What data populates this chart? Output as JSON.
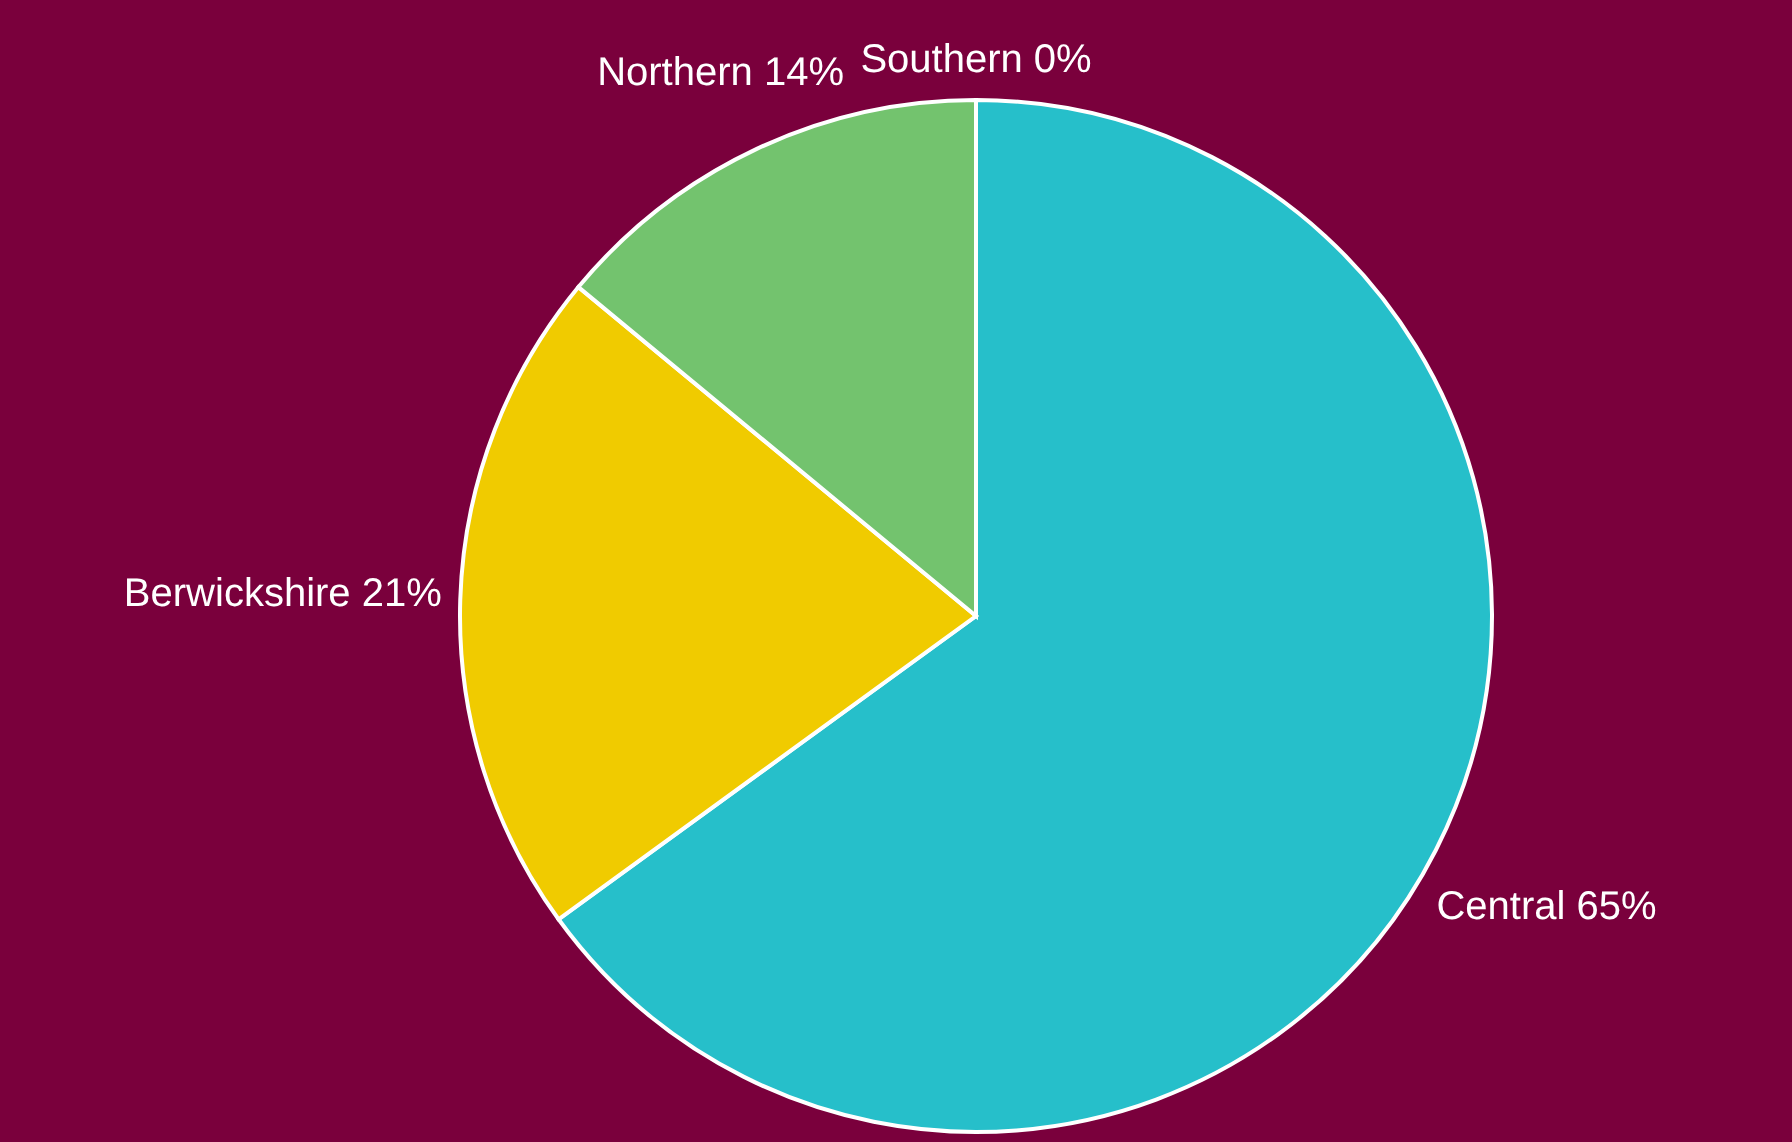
{
  "chart_data": {
    "type": "pie",
    "categories": [
      "Central",
      "Berwickshire",
      "Northern",
      "Southern"
    ],
    "values": [
      65,
      21,
      14,
      0
    ],
    "value_labels": [
      "65%",
      "21%",
      "14%",
      "0%"
    ],
    "colors": [
      "#26bfca",
      "#f0cb00",
      "#73c36e",
      "#e07a2e"
    ]
  }
}
